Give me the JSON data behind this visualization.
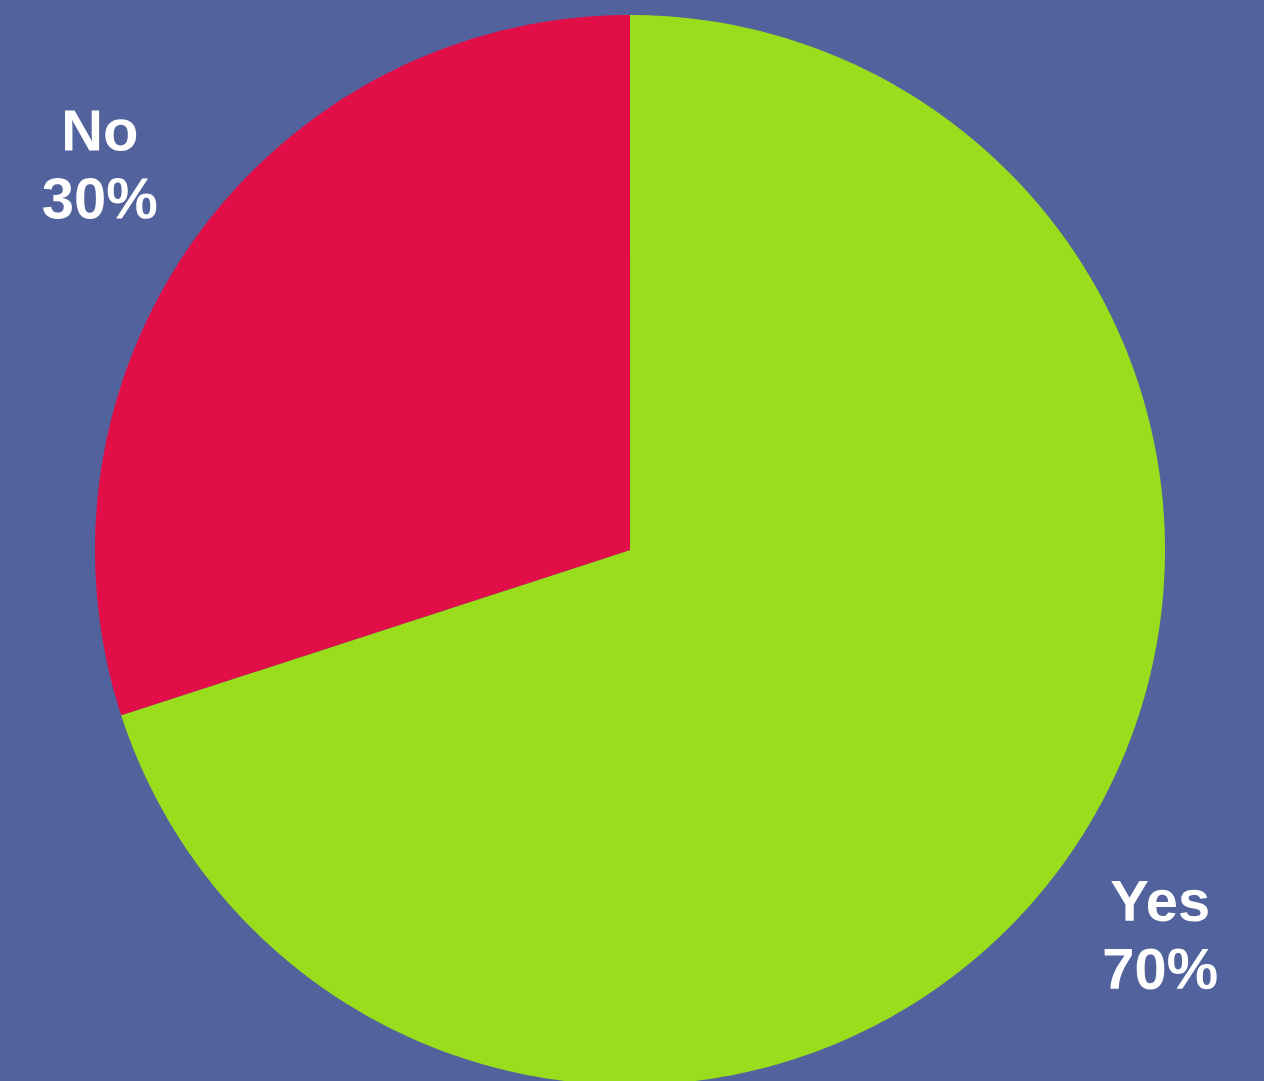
{
  "chart_data": {
    "type": "pie",
    "categories": [
      "Yes",
      "No"
    ],
    "values": [
      70,
      30
    ],
    "colors": [
      "#99dd1c",
      "#e10e47"
    ],
    "value_labels": [
      "70%",
      "30%"
    ]
  }
}
